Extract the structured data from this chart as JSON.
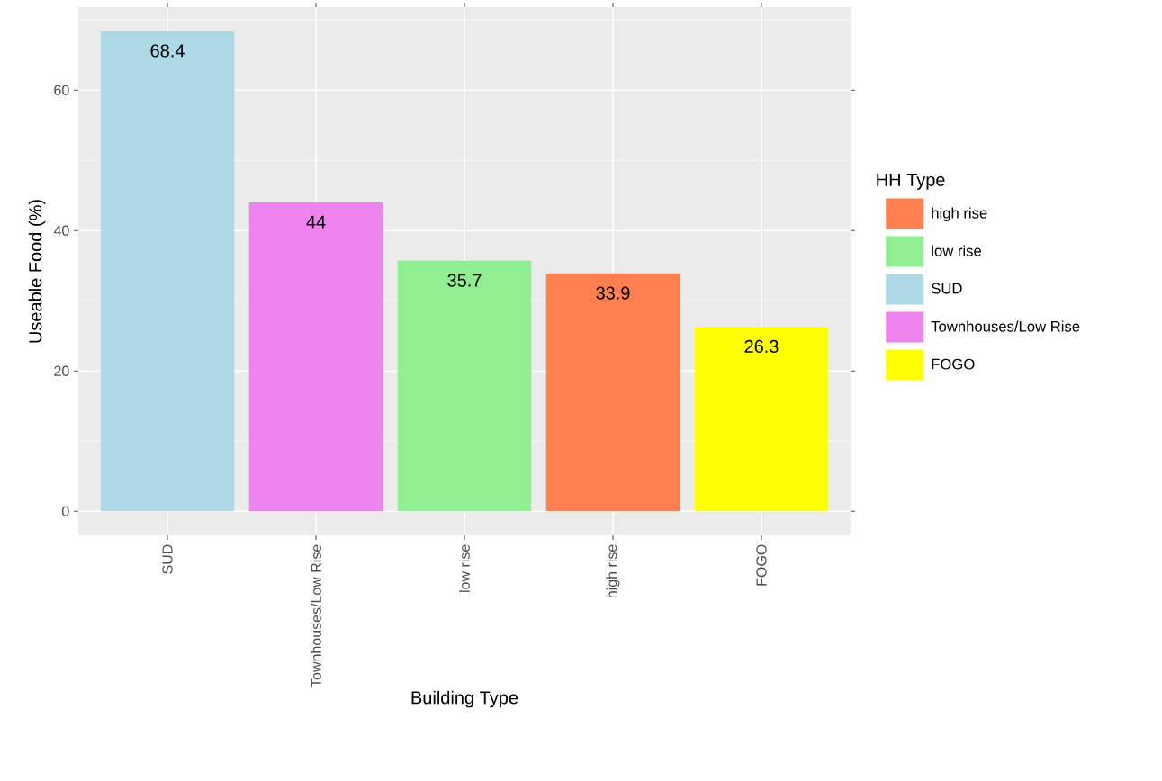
{
  "chart_data": {
    "type": "bar",
    "xlabel": "Building Type",
    "ylabel": "Useable Food (%)",
    "legend_title": "HH Type",
    "categories": [
      "SUD",
      "Townhouses/Low Rise",
      "low rise",
      "high rise",
      "FOGO"
    ],
    "series": [
      {
        "name": "high rise",
        "color": "#ff7f50",
        "values": [
          null,
          null,
          null,
          33.9,
          null
        ]
      },
      {
        "name": "low rise",
        "color": "#90ee90",
        "values": [
          null,
          null,
          35.7,
          null,
          null
        ]
      },
      {
        "name": "SUD",
        "color": "#add8e6",
        "values": [
          68.4,
          null,
          null,
          null,
          null
        ]
      },
      {
        "name": "Townhouses/Low Rise",
        "color": "#ee82ee",
        "values": [
          null,
          44,
          null,
          null,
          null
        ]
      },
      {
        "name": "FOGO",
        "color": "#ffff00",
        "values": [
          null,
          null,
          null,
          null,
          26.3
        ]
      }
    ],
    "ylim": [
      -3.42,
      71.82
    ],
    "yticks": [
      0,
      20,
      40,
      60
    ],
    "grid": true,
    "legend": "right",
    "data_labels": true
  }
}
